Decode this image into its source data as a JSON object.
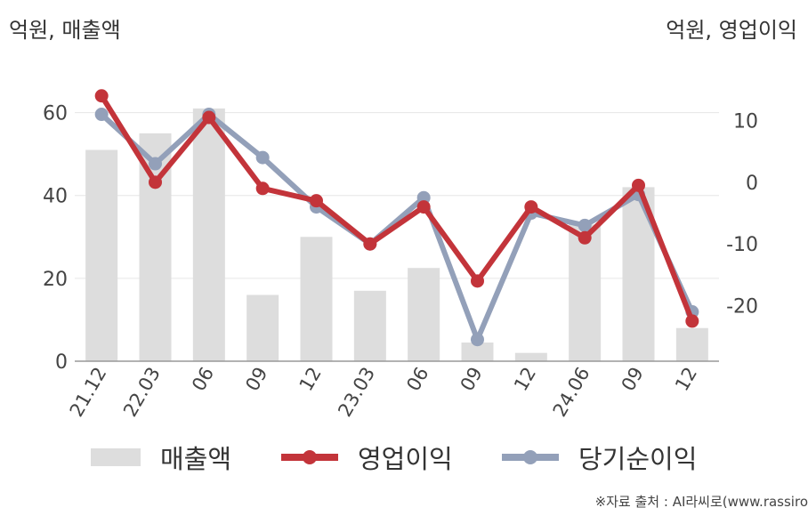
{
  "units": {
    "left": "억원, 매출액",
    "right": "억원, 영업이익"
  },
  "source": "※자료 출처 : AI라씨로(www.rassiro",
  "colors": {
    "revenue": "#dddddd",
    "operating": "#c3343a",
    "net": "#93a0b9",
    "grid": "#e6e6e6",
    "axis": "#999999"
  },
  "legend": [
    {
      "label": "매출액",
      "swatch": "bar"
    },
    {
      "label": "영업이익",
      "swatch": "line-red"
    },
    {
      "label": "당기순이익",
      "swatch": "line-blue"
    }
  ],
  "chart_data": {
    "type": "bar",
    "categories": [
      "21.12",
      "22.03",
      "06",
      "09",
      "12",
      "23.03",
      "06",
      "09",
      "12",
      "24.06",
      "09",
      "12"
    ],
    "left_axis": {
      "ticks": [
        "0",
        "20",
        "40",
        "60"
      ],
      "ylim": [
        0,
        70
      ]
    },
    "right_axis": {
      "ticks": [
        "-20",
        "-10",
        "0",
        "10"
      ],
      "ylim": [
        -29,
        18
      ]
    },
    "series": [
      {
        "name": "매출액",
        "type": "bar",
        "axis": "left",
        "values": [
          51,
          55,
          61,
          16,
          30,
          17,
          22.5,
          4.5,
          2,
          33,
          42,
          8
        ]
      },
      {
        "name": "영업이익",
        "type": "line",
        "axis": "right",
        "values": [
          14,
          0,
          10.5,
          -1,
          -3,
          -10,
          -4,
          -16,
          -4,
          -9,
          -0.5,
          -22.5
        ]
      },
      {
        "name": "당기순이익",
        "type": "line",
        "axis": "right",
        "values": [
          11,
          3,
          11,
          4,
          -4,
          -10,
          -2.5,
          -25.5,
          -5,
          -7,
          -2,
          -21
        ]
      }
    ],
    "grid": true,
    "legend_position": "bottom"
  }
}
